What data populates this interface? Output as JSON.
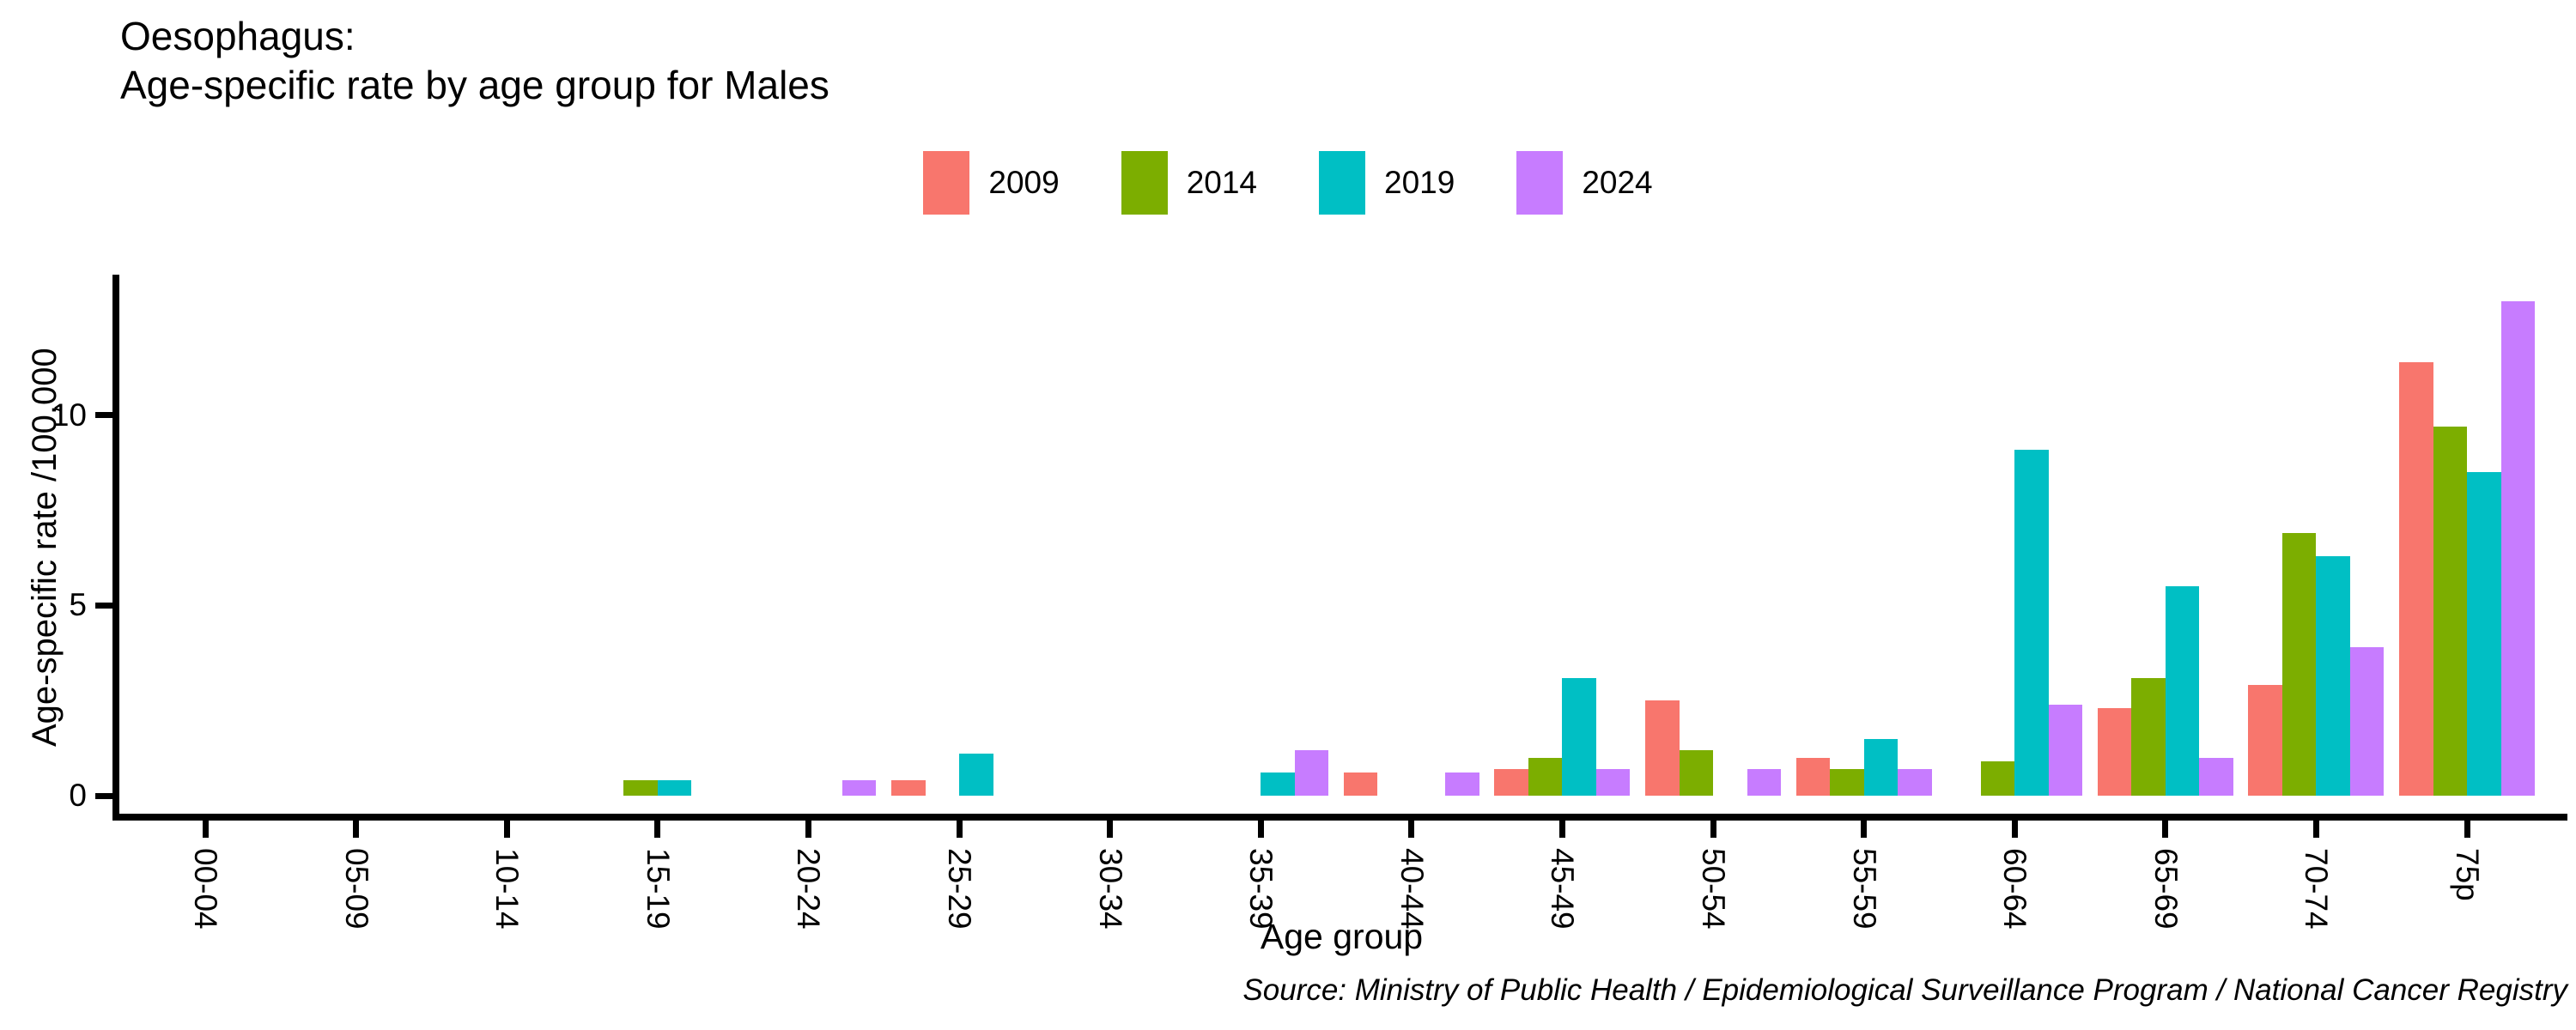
{
  "title": {
    "line1": "Oesophagus:",
    "line2": "Age-specific rate by age group for Males"
  },
  "axes": {
    "y_label": "Age-specific rate /100,000",
    "x_label": "Age group",
    "y_ticks": [
      0,
      5,
      10
    ]
  },
  "source_note": "Source: Ministry of Public Health / Epidemiological Surveillance Program / National Cancer Registry",
  "chart_data": {
    "type": "bar",
    "grouping": "grouped",
    "title": "Oesophagus: Age-specific rate by age group for Males",
    "xlabel": "Age group",
    "ylabel": "Age-specific rate /100,000",
    "ylim": [
      0,
      13.6
    ],
    "y_ticks": [
      0,
      5,
      10
    ],
    "grid": false,
    "legend_position": "top-center",
    "categories": [
      "00-04",
      "05-09",
      "10-14",
      "15-19",
      "20-24",
      "25-29",
      "30-34",
      "35-39",
      "40-44",
      "45-49",
      "50-54",
      "55-59",
      "60-64",
      "65-69",
      "70-74",
      "75p"
    ],
    "series": [
      {
        "name": "2009",
        "color": "#F8766D",
        "values": [
          0,
          0,
          0,
          0,
          0,
          0.4,
          0,
          0,
          0.6,
          0.7,
          2.5,
          1.0,
          0,
          2.3,
          2.9,
          11.4
        ]
      },
      {
        "name": "2014",
        "color": "#7CAE00",
        "values": [
          0,
          0,
          0,
          0.4,
          0,
          0,
          0,
          0,
          0,
          1.0,
          1.2,
          0.7,
          0.9,
          3.1,
          6.9,
          9.7
        ]
      },
      {
        "name": "2019",
        "color": "#00BFC4",
        "values": [
          0,
          0,
          0,
          0.4,
          0,
          1.1,
          0,
          0.6,
          0,
          3.1,
          0,
          1.5,
          9.1,
          5.5,
          6.3,
          8.5
        ]
      },
      {
        "name": "2024",
        "color": "#C77CFF",
        "values": [
          0,
          0,
          0,
          0,
          0.4,
          0,
          0,
          1.2,
          0.6,
          0.7,
          0.7,
          0.7,
          2.4,
          1.0,
          3.9,
          13.0
        ]
      }
    ]
  }
}
